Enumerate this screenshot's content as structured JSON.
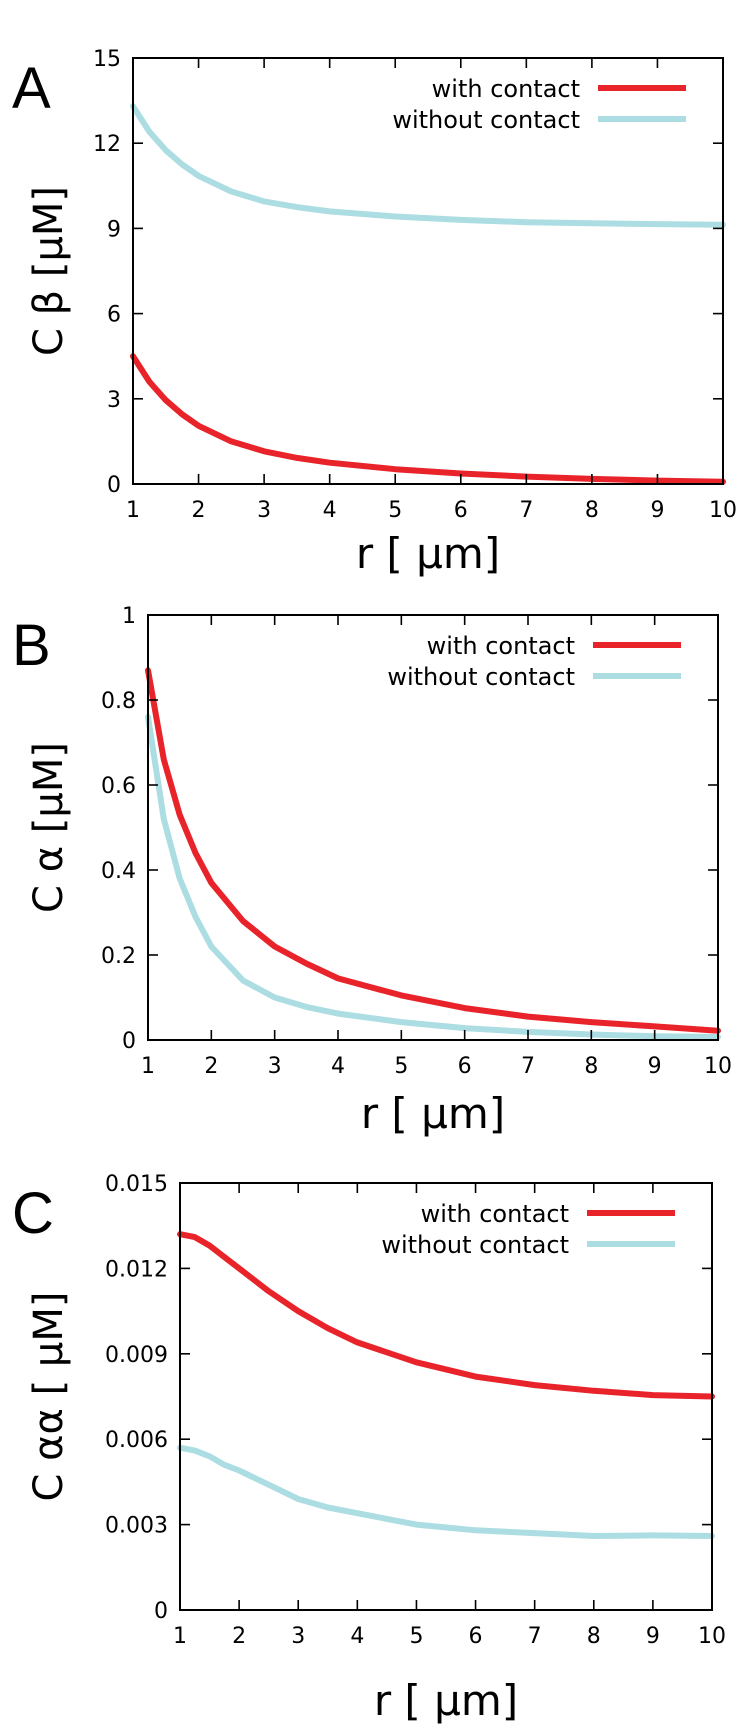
{
  "colors": {
    "with": "#e8232a",
    "without": "#acdde2"
  },
  "chart_data": [
    {
      "panel": "A",
      "type": "line",
      "xlabel": "r  [ μm]",
      "ylabel": "C β [μM]",
      "xlim": [
        1,
        10
      ],
      "ylim": [
        0,
        15
      ],
      "xticks": [
        1,
        2,
        3,
        4,
        5,
        6,
        7,
        8,
        9,
        10
      ],
      "yticks": [
        0,
        3,
        6,
        9,
        12,
        15
      ],
      "ytick_labels": [
        "0",
        "3",
        "6",
        "9",
        "12",
        "15"
      ],
      "legend": "top-right",
      "series": [
        {
          "name": "with contact",
          "color": "#e8232a",
          "x": [
            1,
            1.25,
            1.5,
            1.75,
            2,
            2.5,
            3,
            3.5,
            4,
            5,
            6,
            7,
            8,
            9,
            10
          ],
          "y": [
            4.5,
            3.6,
            2.95,
            2.45,
            2.05,
            1.5,
            1.15,
            0.92,
            0.75,
            0.52,
            0.37,
            0.26,
            0.18,
            0.12,
            0.08
          ]
        },
        {
          "name": "without contact",
          "color": "#acdde2",
          "x": [
            1,
            1.25,
            1.5,
            1.75,
            2,
            2.5,
            3,
            3.5,
            4,
            5,
            6,
            7,
            8,
            9,
            10
          ],
          "y": [
            13.3,
            12.4,
            11.75,
            11.25,
            10.85,
            10.3,
            9.95,
            9.75,
            9.6,
            9.42,
            9.3,
            9.22,
            9.18,
            9.15,
            9.13
          ]
        }
      ]
    },
    {
      "panel": "B",
      "type": "line",
      "xlabel": "r  [ μm]",
      "ylabel": "C α [μM]",
      "xlim": [
        1,
        10
      ],
      "ylim": [
        0,
        1
      ],
      "xticks": [
        1,
        2,
        3,
        4,
        5,
        6,
        7,
        8,
        9,
        10
      ],
      "yticks": [
        0,
        0.2,
        0.4,
        0.6,
        0.8,
        1
      ],
      "ytick_labels": [
        "0",
        "0.2",
        "0.4",
        "0.6",
        "0.8",
        "1"
      ],
      "legend": "top-right",
      "series": [
        {
          "name": "with contact",
          "color": "#e8232a",
          "x": [
            1,
            1.25,
            1.5,
            1.75,
            2,
            2.5,
            3,
            3.5,
            4,
            5,
            6,
            7,
            8,
            9,
            10
          ],
          "y": [
            0.87,
            0.66,
            0.53,
            0.44,
            0.37,
            0.28,
            0.22,
            0.18,
            0.145,
            0.105,
            0.075,
            0.055,
            0.042,
            0.032,
            0.022
          ]
        },
        {
          "name": "without contact",
          "color": "#acdde2",
          "x": [
            1,
            1.25,
            1.5,
            1.75,
            2,
            2.5,
            3,
            3.5,
            4,
            5,
            6,
            7,
            8,
            9,
            10
          ],
          "y": [
            0.76,
            0.52,
            0.38,
            0.29,
            0.22,
            0.14,
            0.1,
            0.078,
            0.062,
            0.042,
            0.028,
            0.019,
            0.013,
            0.009,
            0.007
          ]
        }
      ]
    },
    {
      "panel": "C",
      "type": "line",
      "xlabel": "r  [ μm]",
      "ylabel": "C αα [ μM]",
      "xlim": [
        1,
        10
      ],
      "ylim": [
        0,
        0.015
      ],
      "xticks": [
        1,
        2,
        3,
        4,
        5,
        6,
        7,
        8,
        9,
        10
      ],
      "yticks": [
        0,
        0.003,
        0.006,
        0.009,
        0.012,
        0.015
      ],
      "ytick_labels": [
        "0",
        "0.003",
        "0.006",
        "0.009",
        "0.012",
        "0.015"
      ],
      "legend": "top-right",
      "series": [
        {
          "name": "with contact",
          "color": "#e8232a",
          "x": [
            1,
            1.25,
            1.5,
            1.75,
            2,
            2.5,
            3,
            3.5,
            4,
            5,
            6,
            7,
            8,
            9,
            10
          ],
          "y": [
            0.0132,
            0.0131,
            0.0128,
            0.0124,
            0.012,
            0.0112,
            0.0105,
            0.0099,
            0.0094,
            0.0087,
            0.0082,
            0.0079,
            0.0077,
            0.00755,
            0.0075
          ]
        },
        {
          "name": "without contact",
          "color": "#acdde2",
          "x": [
            1,
            1.25,
            1.5,
            1.75,
            2,
            2.5,
            3,
            3.5,
            4,
            5,
            6,
            7,
            8,
            9,
            10
          ],
          "y": [
            0.0057,
            0.0056,
            0.0054,
            0.0051,
            0.0049,
            0.0044,
            0.0039,
            0.0036,
            0.0034,
            0.003,
            0.0028,
            0.0027,
            0.0026,
            0.00262,
            0.0026
          ]
        }
      ]
    }
  ]
}
